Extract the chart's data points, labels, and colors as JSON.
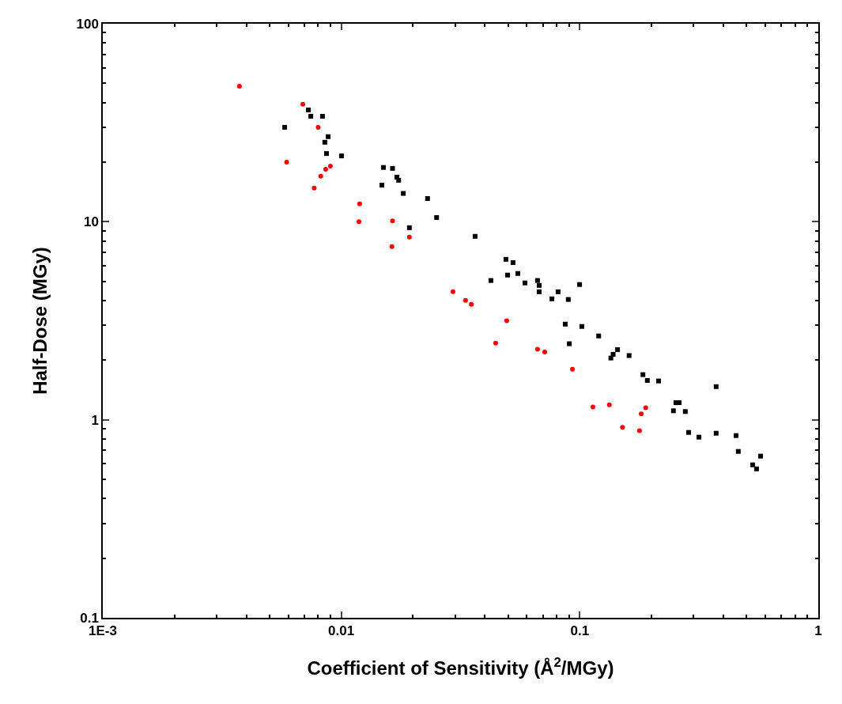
{
  "chart_data": {
    "type": "scatter",
    "xlabel": "Coefficient of Sensitivity (Å$^{2}$/MGy)",
    "ylabel": "Half-Dose (MGy)",
    "log": "xy",
    "xlim": [
      0.001,
      1
    ],
    "ylim": [
      0.1,
      100
    ],
    "xticks": [
      {
        "value": 0.001,
        "label": "1E-3"
      },
      0.01,
      0.1,
      1
    ],
    "yticks": [
      0.1,
      1,
      10,
      100
    ],
    "series": [
      {
        "color": "#000000",
        "marker": "square",
        "x": [
          0.00728,
          0.00745,
          0.00834,
          0.00579,
          0.00881,
          0.00853,
          0.00867,
          0.01002,
          0.01503,
          0.0164,
          0.0171,
          0.0174,
          0.0148,
          0.0182,
          0.023,
          0.0251,
          0.0193,
          0.0364,
          0.049,
          0.0525,
          0.0498,
          0.055,
          0.0424,
          0.0589,
          0.0665,
          0.0676,
          0.0676,
          0.0811,
          0.0764,
          0.0998,
          0.0895,
          0.0869,
          0.102,
          0.0904,
          0.12,
          0.144,
          0.138,
          0.135,
          0.161,
          0.184,
          0.192,
          0.214,
          0.373,
          0.253,
          0.261,
          0.247,
          0.277,
          0.286,
          0.316,
          0.373,
          0.452,
          0.462,
          0.573,
          0.531,
          0.551
        ],
        "values": [
          36.7,
          34.1,
          34.1,
          30.0,
          26.9,
          25.2,
          22.1,
          21.5,
          18.8,
          18.6,
          16.8,
          16.2,
          15.3,
          13.9,
          13.1,
          10.5,
          9.33,
          8.44,
          6.46,
          6.22,
          5.38,
          5.48,
          5.05,
          4.91,
          5.05,
          4.77,
          4.43,
          4.43,
          4.08,
          4.82,
          4.05,
          3.04,
          2.96,
          2.42,
          2.65,
          2.26,
          2.14,
          2.05,
          2.11,
          1.69,
          1.58,
          1.57,
          1.47,
          1.22,
          1.22,
          1.11,
          1.1,
          0.863,
          0.817,
          0.855,
          0.832,
          0.692,
          0.655,
          0.592,
          0.565
        ]
      },
      {
        "color": "#ff0000",
        "marker": "circle",
        "x": [
          0.00374,
          0.0069,
          0.008,
          0.0059,
          0.009,
          0.0086,
          0.0082,
          0.0077,
          0.01194,
          0.01186,
          0.0164,
          0.0193,
          0.0163,
          0.0294,
          0.0332,
          0.0351,
          0.0494,
          0.0444,
          0.0665,
          0.0713,
          0.0931,
          0.1135,
          0.133,
          0.189,
          0.181,
          0.151,
          0.178
        ],
        "values": [
          48.4,
          39.2,
          30.0,
          20.0,
          19.1,
          18.4,
          17.0,
          14.8,
          12.3,
          10.0,
          10.1,
          8.36,
          7.49,
          4.43,
          4.01,
          3.83,
          3.16,
          2.44,
          2.27,
          2.2,
          1.8,
          1.16,
          1.19,
          1.15,
          1.07,
          0.916,
          0.88
        ]
      }
    ]
  }
}
